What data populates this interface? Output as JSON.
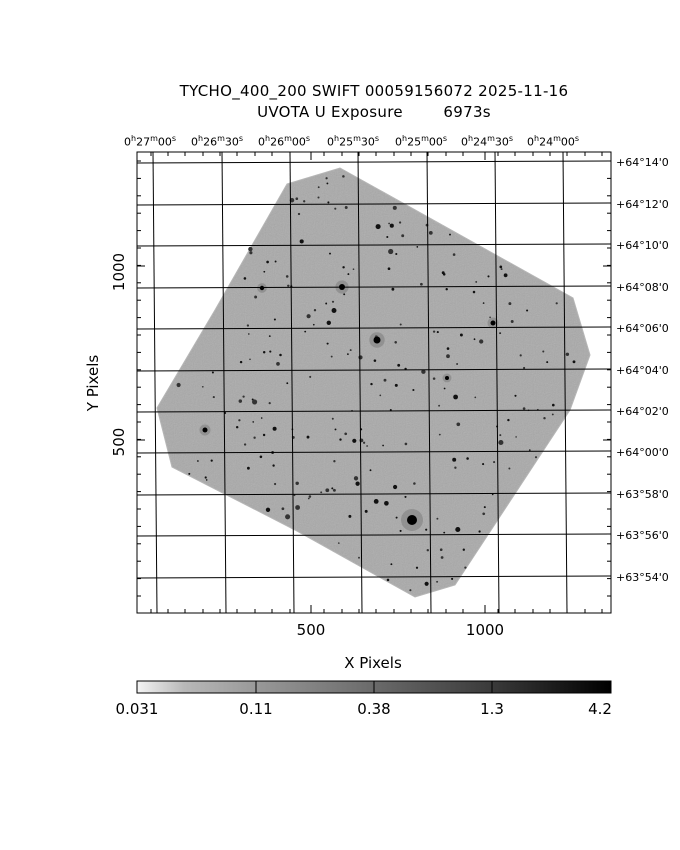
{
  "title": {
    "line1": "TYCHO_400_200 SWIFT 00059156072 2025-11-16",
    "line2": "UVOTA U Exposure        6973s"
  },
  "axes": {
    "x_label": "X Pixels",
    "y_label": "Y Pixels",
    "x_ticks": [
      "500",
      "1000"
    ],
    "y_ticks": [
      "1000",
      "500"
    ]
  },
  "ra_ticks": [
    {
      "h": "0",
      "m": "27",
      "s": "00"
    },
    {
      "h": "0",
      "m": "26",
      "s": "30"
    },
    {
      "h": "0",
      "m": "26",
      "s": "00"
    },
    {
      "h": "0",
      "m": "25",
      "s": "30"
    },
    {
      "h": "0",
      "m": "25",
      "s": "00"
    },
    {
      "h": "0",
      "m": "24",
      "s": "30"
    },
    {
      "h": "0",
      "m": "24",
      "s": "00"
    }
  ],
  "dec_ticks": [
    "+64°14'0",
    "+64°12'0",
    "+64°10'0",
    "+64°08'0",
    "+64°06'0",
    "+64°04'0",
    "+64°02'0",
    "+64°00'0",
    "+63°58'0",
    "+63°56'0",
    "+63°54'0"
  ],
  "colorbar": {
    "labels": [
      "0.031",
      "0.11",
      "0.38",
      "1.3",
      "4.2"
    ]
  },
  "colors": {
    "image_fill": "#a9a9a9",
    "grid": "#000000"
  }
}
